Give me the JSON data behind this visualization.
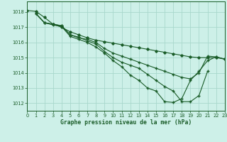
{
  "title": "Graphe pression niveau de la mer (hPa)",
  "bg_color": "#cdf0e8",
  "grid_color": "#a8d8cc",
  "line_color": "#1a5c28",
  "xlim": [
    0,
    23
  ],
  "ylim": [
    1011.5,
    1018.7
  ],
  "yticks": [
    1012,
    1013,
    1014,
    1015,
    1016,
    1017,
    1018
  ],
  "xticks": [
    0,
    1,
    2,
    3,
    4,
    5,
    6,
    7,
    8,
    9,
    10,
    11,
    12,
    13,
    14,
    15,
    16,
    17,
    18,
    19,
    20,
    21,
    22,
    23
  ],
  "line1_x": [
    0,
    1,
    2,
    3,
    4,
    5,
    6,
    7,
    8,
    9,
    10,
    11,
    12,
    13,
    14,
    15,
    16,
    17,
    18,
    19,
    20,
    21,
    22,
    23
  ],
  "line1_y": [
    1018.1,
    1018.05,
    1017.65,
    1017.2,
    1017.0,
    1016.7,
    1016.5,
    1016.3,
    1016.15,
    1016.05,
    1015.95,
    1015.85,
    1015.75,
    1015.65,
    1015.55,
    1015.45,
    1015.35,
    1015.25,
    1015.15,
    1015.05,
    1015.0,
    1015.0,
    1015.0,
    1014.9
  ],
  "line2_x": [
    1,
    2,
    3,
    4,
    5,
    6,
    7,
    8,
    9,
    10,
    11,
    12,
    13,
    14,
    15,
    16,
    17,
    18,
    19,
    20,
    21,
    22,
    23
  ],
  "line2_y": [
    1017.9,
    1017.3,
    1017.2,
    1017.1,
    1016.5,
    1016.3,
    1016.2,
    1016.0,
    1015.6,
    1015.3,
    1015.1,
    1014.9,
    1014.7,
    1014.5,
    1014.3,
    1014.1,
    1013.9,
    1013.7,
    1013.6,
    1014.0,
    1015.1,
    1015.05,
    1014.9
  ],
  "line3_x": [
    1,
    2,
    3,
    4,
    5,
    6,
    7,
    8,
    9,
    10,
    11,
    12,
    13,
    14,
    15,
    16,
    17,
    18,
    19,
    20,
    21
  ],
  "line3_y": [
    1017.9,
    1017.3,
    1017.2,
    1017.1,
    1016.5,
    1016.35,
    1016.1,
    1015.9,
    1015.4,
    1015.0,
    1014.7,
    1014.5,
    1014.3,
    1013.9,
    1013.5,
    1013.1,
    1012.8,
    1012.1,
    1012.1,
    1012.5,
    1014.1
  ],
  "line4_x": [
    1,
    2,
    3,
    4,
    5,
    6,
    7,
    8,
    9,
    10,
    11,
    12,
    13,
    14,
    15,
    16,
    17,
    18,
    19,
    20,
    21,
    22,
    23
  ],
  "line4_y": [
    1017.9,
    1017.3,
    1017.15,
    1017.05,
    1016.4,
    1016.2,
    1016.0,
    1015.7,
    1015.3,
    1014.8,
    1014.4,
    1013.85,
    1013.5,
    1013.0,
    1012.8,
    1012.1,
    1012.05,
    1012.3,
    1013.5,
    1014.1,
    1014.8,
    1015.05,
    1014.9
  ]
}
